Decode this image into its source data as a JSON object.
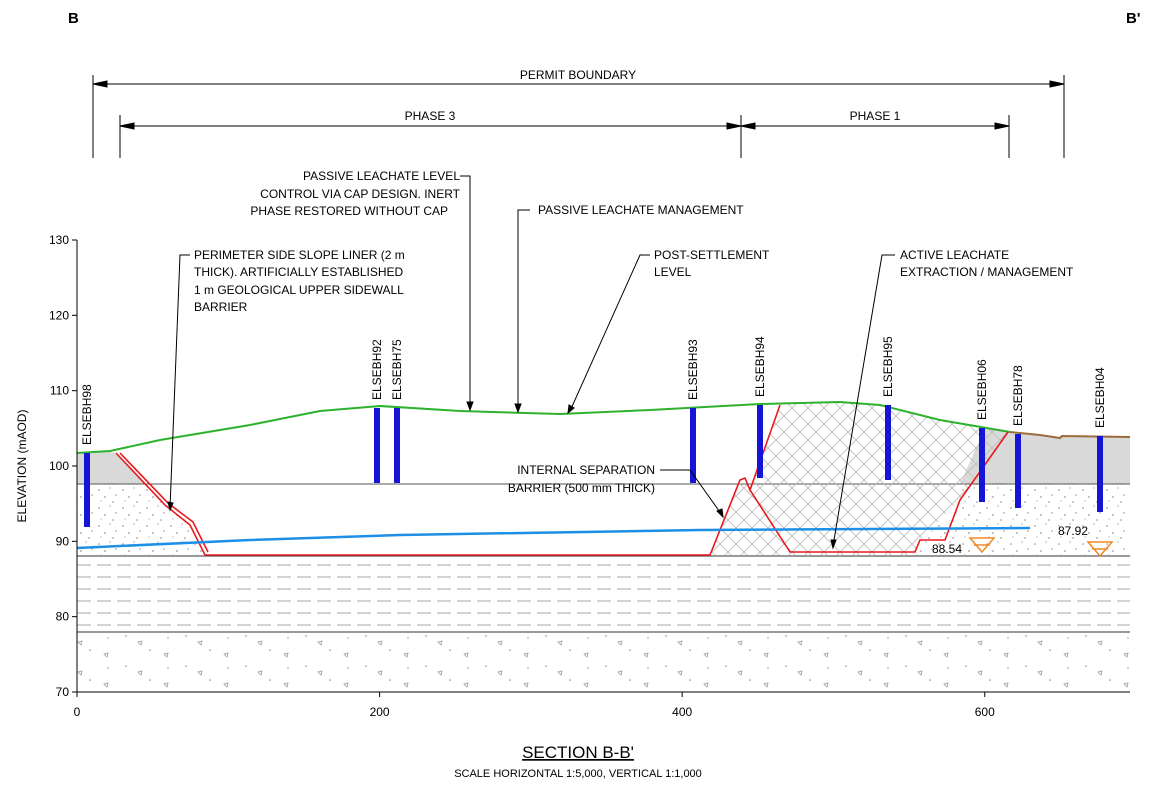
{
  "corner_labels": {
    "left": "B",
    "right": "B'"
  },
  "dimensions": {
    "permit": "PERMIT BOUNDARY",
    "phase3": "PHASE 3",
    "phase1": "PHASE 1"
  },
  "annotations": [
    {
      "lines": [
        "PASSIVE LEACHATE LEVEL",
        "CONTROL VIA CAP DESIGN.  INERT",
        "PHASE RESTORED WITHOUT CAP"
      ]
    },
    {
      "lines": [
        "PASSIVE LEACHATE MANAGEMENT"
      ]
    },
    {
      "lines": [
        "PERIMETER SIDE SLOPE LINER (2 m",
        "THICK). ARTIFICIALLY ESTABLISHED",
        "1 m GEOLOGICAL UPPER SIDEWALL",
        "BARRIER"
      ]
    },
    {
      "lines": [
        "POST-SETTLEMENT",
        "LEVEL"
      ]
    },
    {
      "lines": [
        "ACTIVE LEACHATE",
        "EXTRACTION / MANAGEMENT"
      ]
    },
    {
      "lines": [
        "INTERNAL SEPARATION",
        "BARRIER (500 mm THICK)"
      ]
    }
  ],
  "boreholes": [
    "ELSEBH98",
    "ELSEBH92",
    "ELSEBH75",
    "ELSEBH93",
    "ELSEBH94",
    "ELSEBH95",
    "ELSEBH06",
    "ELSEBH78",
    "ELSEBH04"
  ],
  "water_levels": [
    "88.54",
    "87.92"
  ],
  "axes": {
    "ylabel": "ELEVATION (mAOD)",
    "xlim": [
      0,
      696
    ],
    "ylim": [
      70,
      130
    ],
    "xticks": [
      0,
      200,
      400,
      600
    ],
    "yticks": [
      70,
      80,
      90,
      100,
      110,
      120,
      130
    ]
  },
  "footer": {
    "title": "SECTION B-B'",
    "scale": "SCALE HORIZONTAL 1:5,000, VERTICAL 1:1,000"
  }
}
